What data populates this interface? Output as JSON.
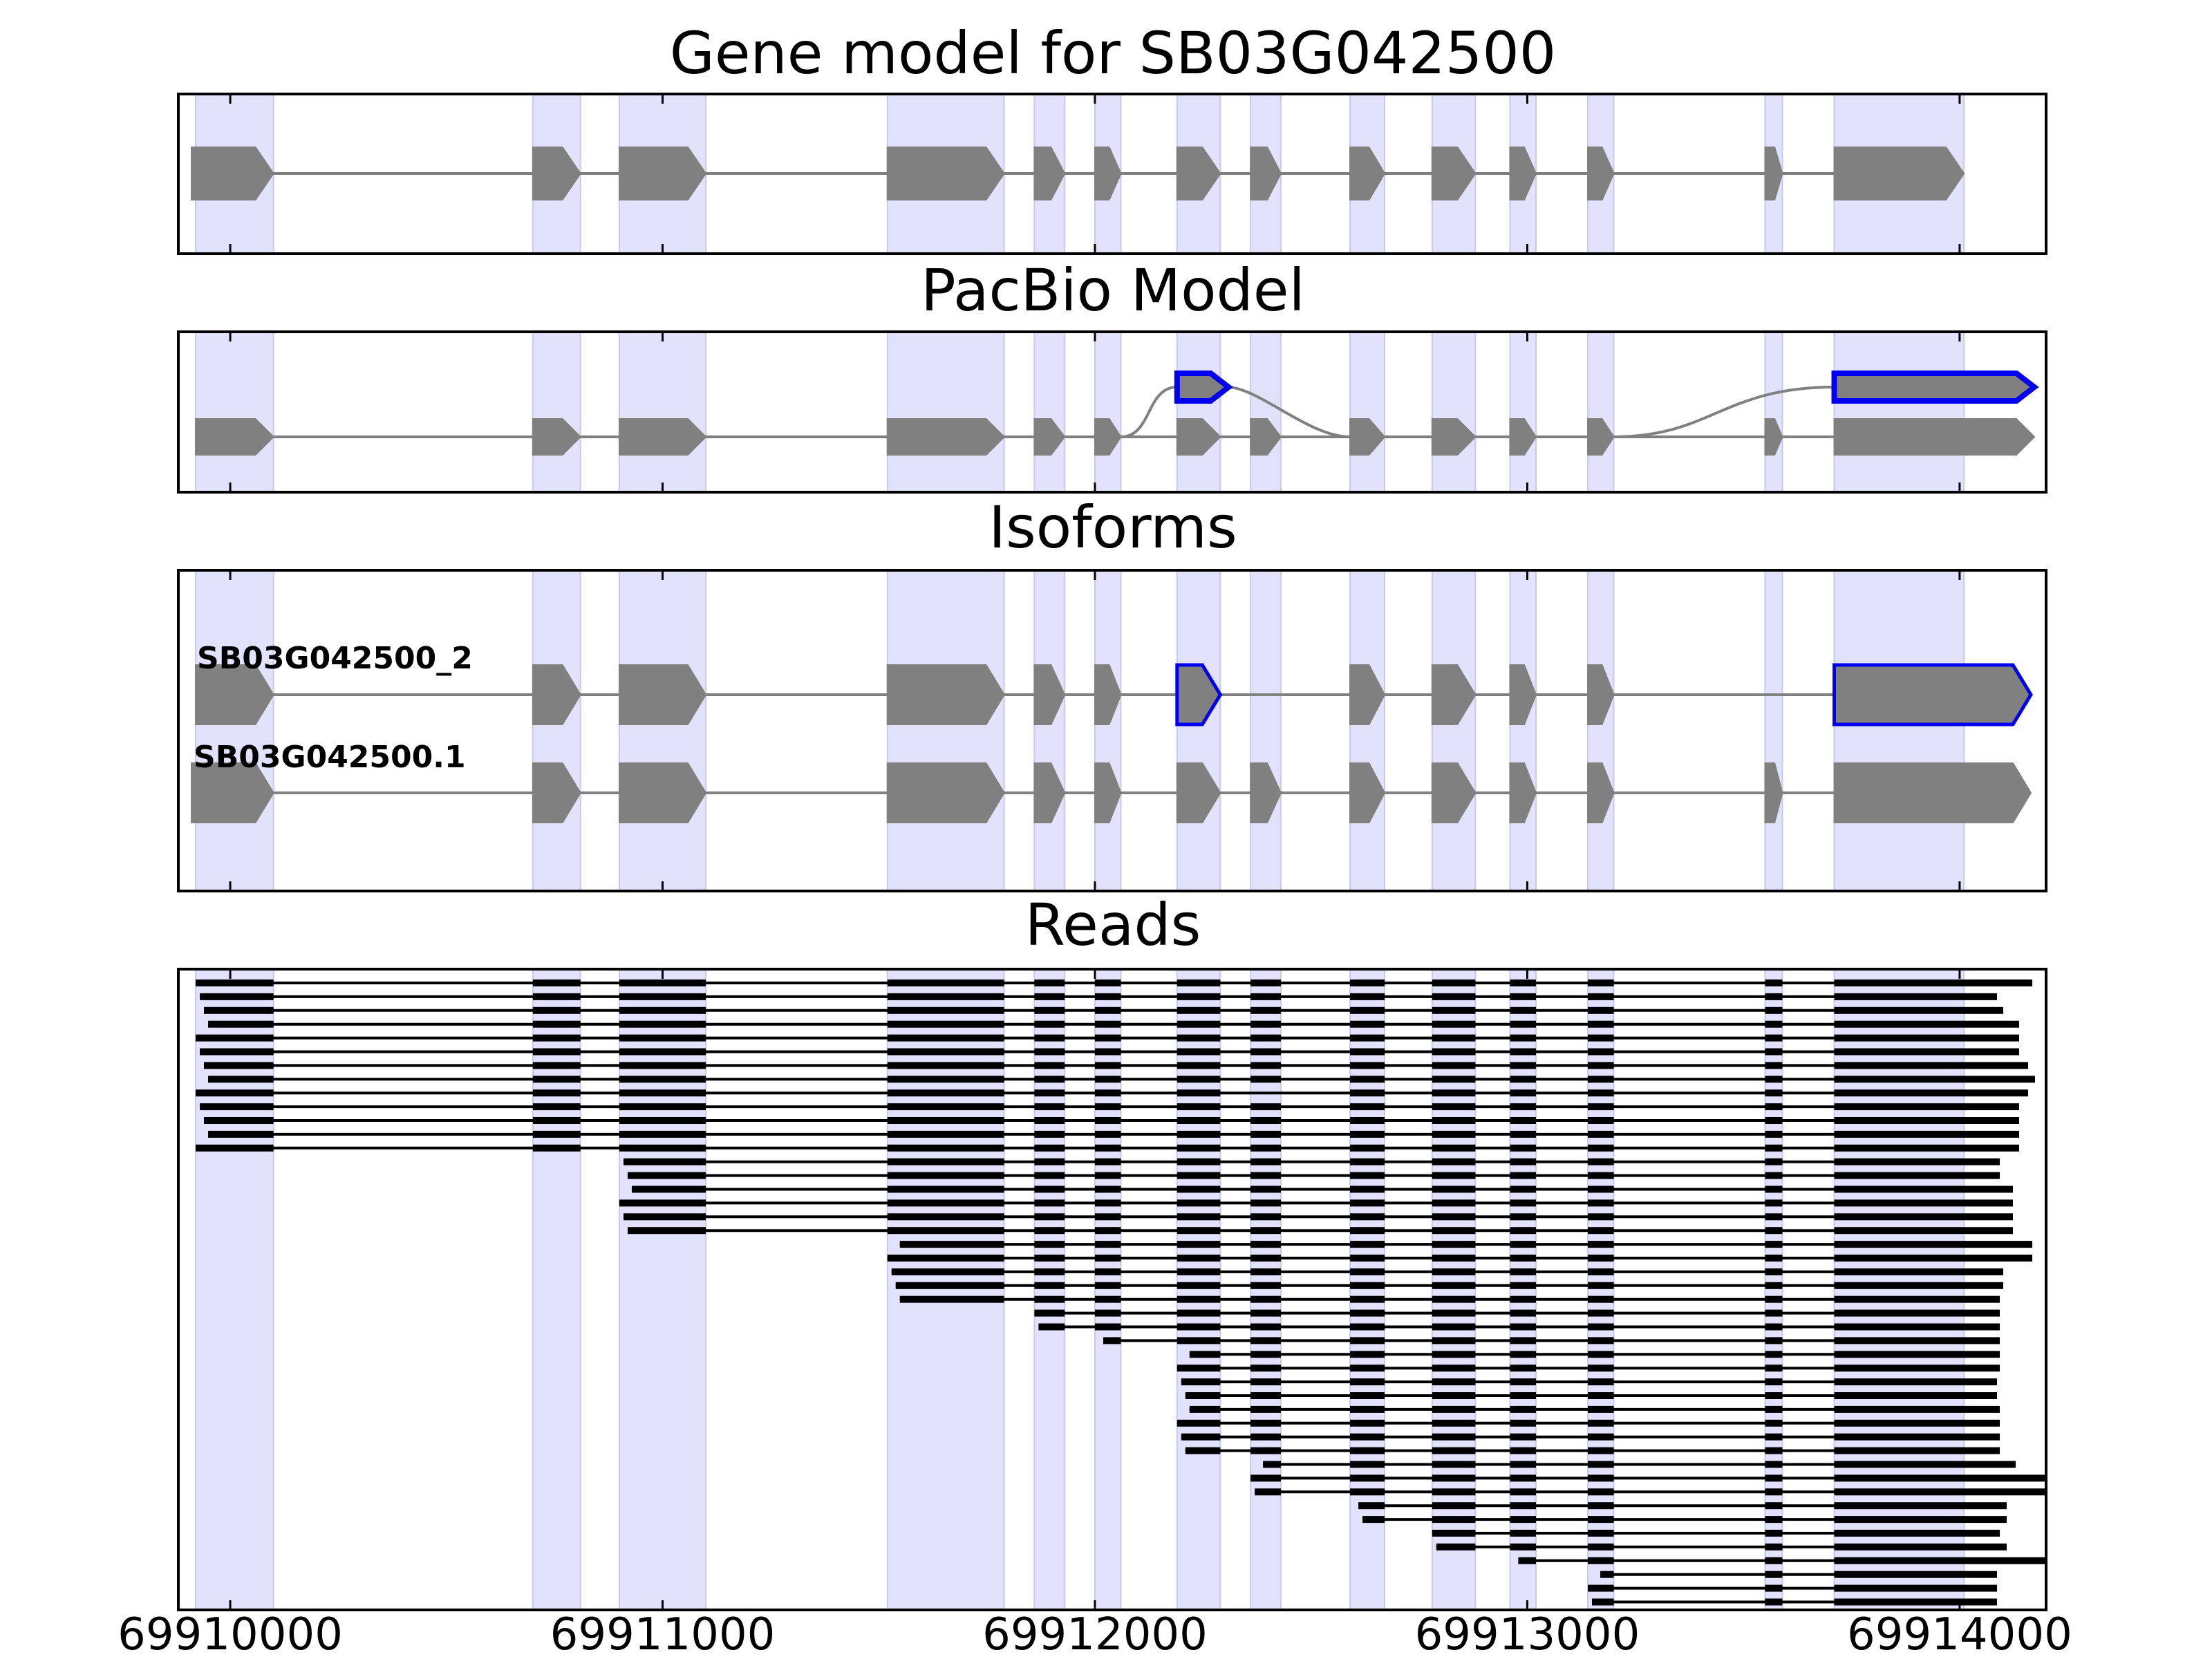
{
  "panels": {
    "gene_model": {
      "title": "Gene model for SB03G042500"
    },
    "pacbio": {
      "title": "PacBio Model"
    },
    "isoforms": {
      "title": "Isoforms",
      "labels": [
        "SB03G042500_2",
        "SB03G042500.1"
      ]
    },
    "reads": {
      "title": "Reads",
      "count": 46
    }
  },
  "x_axis": {
    "min": 69909880,
    "max": 69914200,
    "ticks": [
      69910000,
      69911000,
      69912000,
      69913000,
      69914000
    ],
    "tick_labels": [
      "69910000",
      "69911000",
      "69912000",
      "69913000",
      "69914000"
    ]
  },
  "exons": [
    [
      69909920,
      69910100
    ],
    [
      69910700,
      69910810
    ],
    [
      69910900,
      69911100
    ],
    [
      69911520,
      69911790
    ],
    [
      69911860,
      69911930
    ],
    [
      69912000,
      69912060
    ],
    [
      69912190,
      69912290
    ],
    [
      69912360,
      69912430
    ],
    [
      69912590,
      69912670
    ],
    [
      69912780,
      69912880
    ],
    [
      69912960,
      69913020
    ],
    [
      69913140,
      69913200
    ],
    [
      69913550,
      69913590
    ],
    [
      69913710,
      69914010
    ]
  ],
  "highlight_exons": [
    6,
    13
  ],
  "colors": {
    "shade": "#e2e2fc",
    "exon": "#808080",
    "alt_outline": "#0000ee",
    "read": "#000000",
    "intron": "#808080"
  }
}
